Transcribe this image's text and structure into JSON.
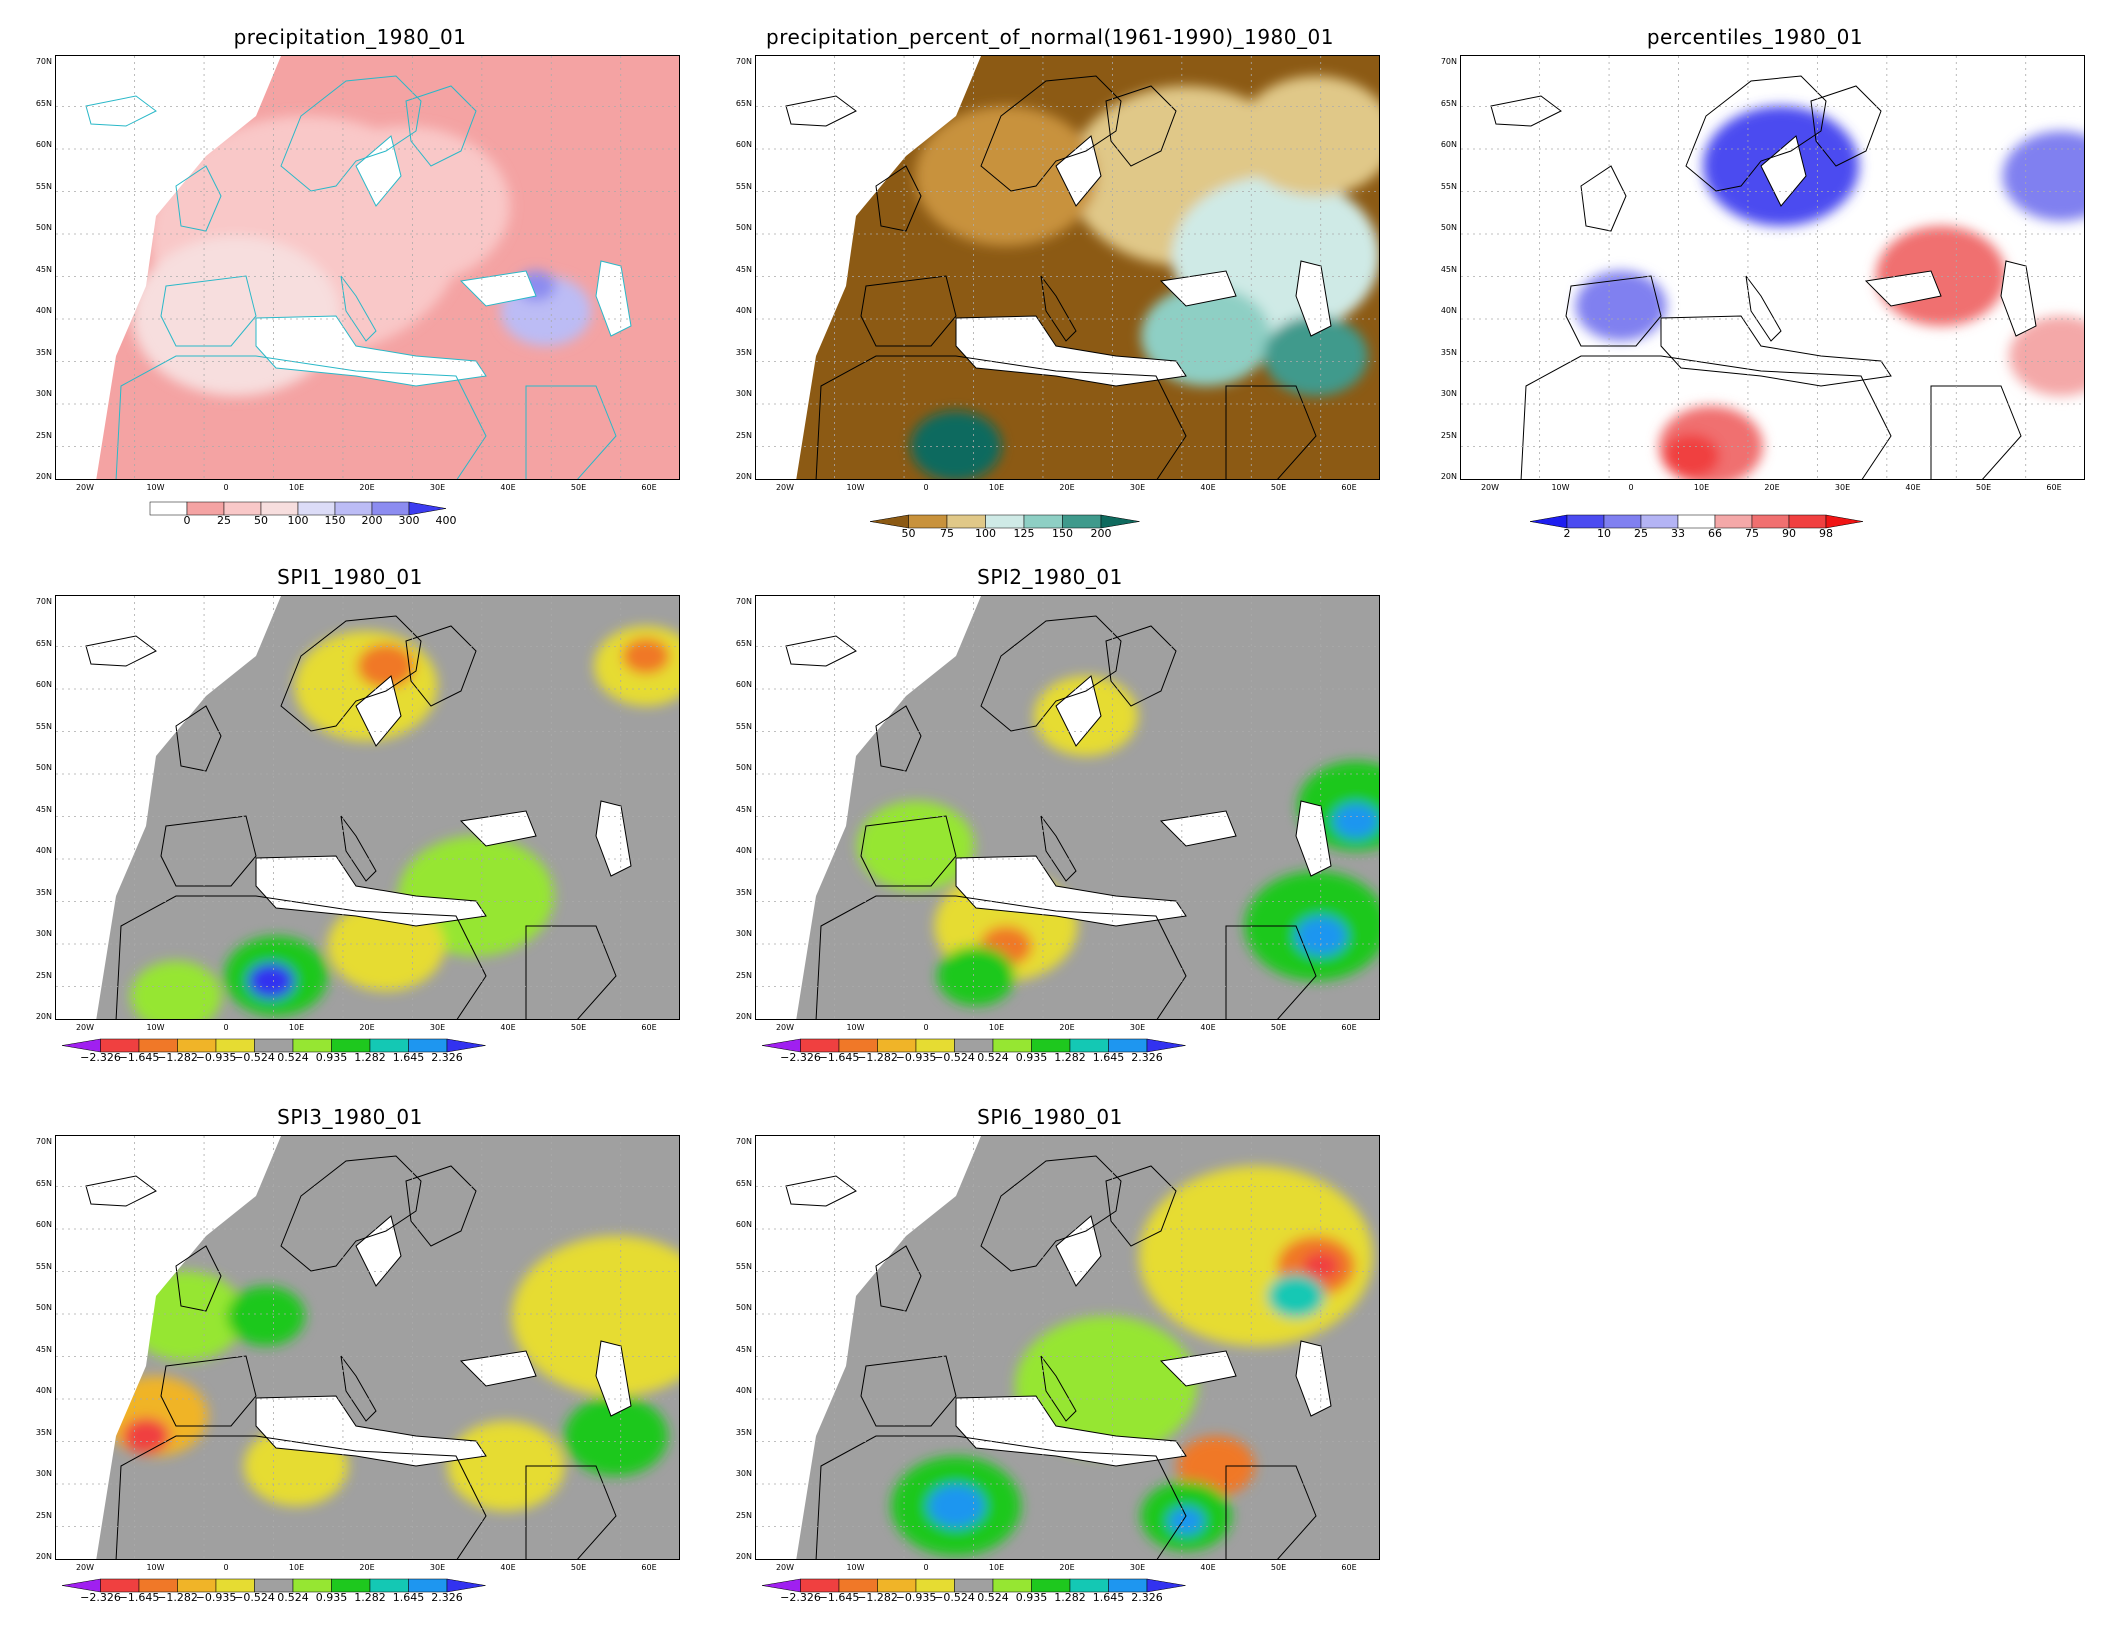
{
  "common": {
    "lat_labels": [
      "70N",
      "65N",
      "60N",
      "55N",
      "50N",
      "45N",
      "40N",
      "35N",
      "30N",
      "25N",
      "20N"
    ],
    "lon_labels": [
      "20W",
      "10W",
      "0",
      "10E",
      "20E",
      "30E",
      "40E",
      "50E",
      "60E"
    ]
  },
  "panels": [
    {
      "id": "precipitation",
      "title": "precipitation_1980_01",
      "colorbar": {
        "labels": [
          "0",
          "25",
          "50",
          "100",
          "150",
          "200",
          "300",
          "400"
        ],
        "colors": [
          "#ffffff",
          "#f4a3a3",
          "#f9c8c8",
          "#f7dede",
          "#dcdcf7",
          "#bcbcf5",
          "#8c8cf0",
          "#3c3cf0"
        ]
      }
    },
    {
      "id": "percent-of-normal",
      "title": "precipitation_percent_of_normal(1961-1990)_1980_01",
      "colorbar": {
        "labels": [
          "50",
          "75",
          "100",
          "125",
          "150",
          "200"
        ],
        "colors": [
          "#8c5a14",
          "#c8923c",
          "#e0c888",
          "#cfeae6",
          "#8ecfc4",
          "#3f9a8c",
          "#0f6a5e"
        ]
      }
    },
    {
      "id": "percentiles",
      "title": "percentiles_1980_01",
      "colorbar": {
        "labels": [
          "2",
          "10",
          "25",
          "33",
          "66",
          "75",
          "90",
          "98"
        ],
        "colors": [
          "#1e1ef0",
          "#4c4cf0",
          "#8080f0",
          "#b4b4f4",
          "#ffffff",
          "#f4a8a8",
          "#f07070",
          "#f04040",
          "#f01414"
        ]
      }
    },
    {
      "id": "spi1",
      "title": "SPI1_1980_01",
      "colorbar": {
        "labels": [
          "−2.326",
          "−1.645",
          "−1.282",
          "−0.935",
          "−0.524",
          "0.524",
          "0.935",
          "1.282",
          "1.645",
          "2.326"
        ],
        "colors": [
          "#a020f0",
          "#f04040",
          "#f07828",
          "#f0b428",
          "#e6dc32",
          "#a0a0a0",
          "#96e632",
          "#1ec81e",
          "#14c8b4",
          "#1e96f0",
          "#3232f0"
        ]
      }
    },
    {
      "id": "spi2",
      "title": "SPI2_1980_01",
      "colorbar": {
        "labels": [
          "−2.326",
          "−1.645",
          "−1.282",
          "−0.935",
          "−0.524",
          "0.524",
          "0.935",
          "1.282",
          "1.645",
          "2.326"
        ],
        "colors": [
          "#a020f0",
          "#f04040",
          "#f07828",
          "#f0b428",
          "#e6dc32",
          "#a0a0a0",
          "#96e632",
          "#1ec81e",
          "#14c8b4",
          "#1e96f0",
          "#3232f0"
        ]
      }
    },
    {
      "id": "spi3",
      "title": "SPI3_1980_01",
      "colorbar": {
        "labels": [
          "−2.326",
          "−1.645",
          "−1.282",
          "−0.935",
          "−0.524",
          "0.524",
          "0.935",
          "1.282",
          "1.645",
          "2.326"
        ],
        "colors": [
          "#a020f0",
          "#f04040",
          "#f07828",
          "#f0b428",
          "#e6dc32",
          "#a0a0a0",
          "#96e632",
          "#1ec81e",
          "#14c8b4",
          "#1e96f0",
          "#3232f0"
        ]
      }
    },
    {
      "id": "spi6",
      "title": "SPI6_1980_01",
      "colorbar": {
        "labels": [
          "−2.326",
          "−1.645",
          "−1.282",
          "−0.935",
          "−0.524",
          "0.524",
          "0.935",
          "1.282",
          "1.645",
          "2.326"
        ],
        "colors": [
          "#a020f0",
          "#f04040",
          "#f07828",
          "#f0b428",
          "#e6dc32",
          "#a0a0a0",
          "#96e632",
          "#1ec81e",
          "#14c8b4",
          "#1e96f0",
          "#3232f0"
        ]
      }
    }
  ]
}
